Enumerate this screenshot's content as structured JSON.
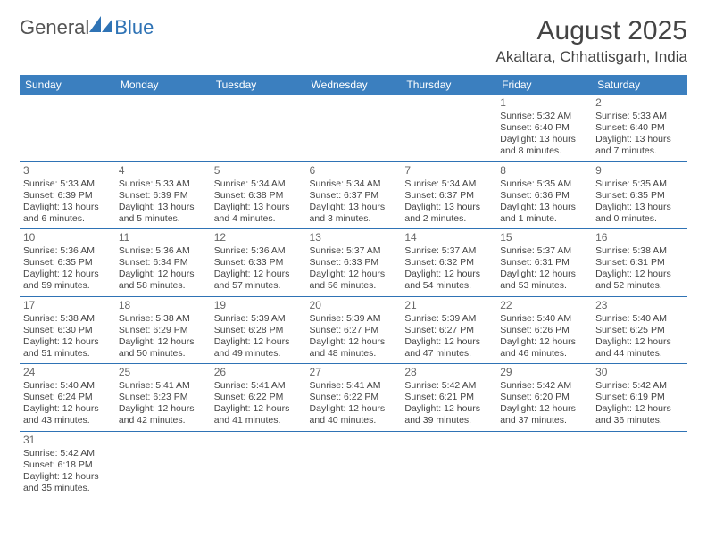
{
  "logo": {
    "general": "General",
    "blue": "Blue"
  },
  "title": "August 2025",
  "location": "Akaltara, Chhattisgarh, India",
  "colors": {
    "header_bg": "#3b7fbf",
    "header_fg": "#ffffff",
    "accent": "#2f73b5",
    "text": "#444444",
    "daynum": "#666666"
  },
  "weekdays": [
    "Sunday",
    "Monday",
    "Tuesday",
    "Wednesday",
    "Thursday",
    "Friday",
    "Saturday"
  ],
  "weeks": [
    [
      null,
      null,
      null,
      null,
      null,
      {
        "d": "1",
        "sr": "Sunrise: 5:32 AM",
        "ss": "Sunset: 6:40 PM",
        "dl": "Daylight: 13 hours and 8 minutes."
      },
      {
        "d": "2",
        "sr": "Sunrise: 5:33 AM",
        "ss": "Sunset: 6:40 PM",
        "dl": "Daylight: 13 hours and 7 minutes."
      }
    ],
    [
      {
        "d": "3",
        "sr": "Sunrise: 5:33 AM",
        "ss": "Sunset: 6:39 PM",
        "dl": "Daylight: 13 hours and 6 minutes."
      },
      {
        "d": "4",
        "sr": "Sunrise: 5:33 AM",
        "ss": "Sunset: 6:39 PM",
        "dl": "Daylight: 13 hours and 5 minutes."
      },
      {
        "d": "5",
        "sr": "Sunrise: 5:34 AM",
        "ss": "Sunset: 6:38 PM",
        "dl": "Daylight: 13 hours and 4 minutes."
      },
      {
        "d": "6",
        "sr": "Sunrise: 5:34 AM",
        "ss": "Sunset: 6:37 PM",
        "dl": "Daylight: 13 hours and 3 minutes."
      },
      {
        "d": "7",
        "sr": "Sunrise: 5:34 AM",
        "ss": "Sunset: 6:37 PM",
        "dl": "Daylight: 13 hours and 2 minutes."
      },
      {
        "d": "8",
        "sr": "Sunrise: 5:35 AM",
        "ss": "Sunset: 6:36 PM",
        "dl": "Daylight: 13 hours and 1 minute."
      },
      {
        "d": "9",
        "sr": "Sunrise: 5:35 AM",
        "ss": "Sunset: 6:35 PM",
        "dl": "Daylight: 13 hours and 0 minutes."
      }
    ],
    [
      {
        "d": "10",
        "sr": "Sunrise: 5:36 AM",
        "ss": "Sunset: 6:35 PM",
        "dl": "Daylight: 12 hours and 59 minutes."
      },
      {
        "d": "11",
        "sr": "Sunrise: 5:36 AM",
        "ss": "Sunset: 6:34 PM",
        "dl": "Daylight: 12 hours and 58 minutes."
      },
      {
        "d": "12",
        "sr": "Sunrise: 5:36 AM",
        "ss": "Sunset: 6:33 PM",
        "dl": "Daylight: 12 hours and 57 minutes."
      },
      {
        "d": "13",
        "sr": "Sunrise: 5:37 AM",
        "ss": "Sunset: 6:33 PM",
        "dl": "Daylight: 12 hours and 56 minutes."
      },
      {
        "d": "14",
        "sr": "Sunrise: 5:37 AM",
        "ss": "Sunset: 6:32 PM",
        "dl": "Daylight: 12 hours and 54 minutes."
      },
      {
        "d": "15",
        "sr": "Sunrise: 5:37 AM",
        "ss": "Sunset: 6:31 PM",
        "dl": "Daylight: 12 hours and 53 minutes."
      },
      {
        "d": "16",
        "sr": "Sunrise: 5:38 AM",
        "ss": "Sunset: 6:31 PM",
        "dl": "Daylight: 12 hours and 52 minutes."
      }
    ],
    [
      {
        "d": "17",
        "sr": "Sunrise: 5:38 AM",
        "ss": "Sunset: 6:30 PM",
        "dl": "Daylight: 12 hours and 51 minutes."
      },
      {
        "d": "18",
        "sr": "Sunrise: 5:38 AM",
        "ss": "Sunset: 6:29 PM",
        "dl": "Daylight: 12 hours and 50 minutes."
      },
      {
        "d": "19",
        "sr": "Sunrise: 5:39 AM",
        "ss": "Sunset: 6:28 PM",
        "dl": "Daylight: 12 hours and 49 minutes."
      },
      {
        "d": "20",
        "sr": "Sunrise: 5:39 AM",
        "ss": "Sunset: 6:27 PM",
        "dl": "Daylight: 12 hours and 48 minutes."
      },
      {
        "d": "21",
        "sr": "Sunrise: 5:39 AM",
        "ss": "Sunset: 6:27 PM",
        "dl": "Daylight: 12 hours and 47 minutes."
      },
      {
        "d": "22",
        "sr": "Sunrise: 5:40 AM",
        "ss": "Sunset: 6:26 PM",
        "dl": "Daylight: 12 hours and 46 minutes."
      },
      {
        "d": "23",
        "sr": "Sunrise: 5:40 AM",
        "ss": "Sunset: 6:25 PM",
        "dl": "Daylight: 12 hours and 44 minutes."
      }
    ],
    [
      {
        "d": "24",
        "sr": "Sunrise: 5:40 AM",
        "ss": "Sunset: 6:24 PM",
        "dl": "Daylight: 12 hours and 43 minutes."
      },
      {
        "d": "25",
        "sr": "Sunrise: 5:41 AM",
        "ss": "Sunset: 6:23 PM",
        "dl": "Daylight: 12 hours and 42 minutes."
      },
      {
        "d": "26",
        "sr": "Sunrise: 5:41 AM",
        "ss": "Sunset: 6:22 PM",
        "dl": "Daylight: 12 hours and 41 minutes."
      },
      {
        "d": "27",
        "sr": "Sunrise: 5:41 AM",
        "ss": "Sunset: 6:22 PM",
        "dl": "Daylight: 12 hours and 40 minutes."
      },
      {
        "d": "28",
        "sr": "Sunrise: 5:42 AM",
        "ss": "Sunset: 6:21 PM",
        "dl": "Daylight: 12 hours and 39 minutes."
      },
      {
        "d": "29",
        "sr": "Sunrise: 5:42 AM",
        "ss": "Sunset: 6:20 PM",
        "dl": "Daylight: 12 hours and 37 minutes."
      },
      {
        "d": "30",
        "sr": "Sunrise: 5:42 AM",
        "ss": "Sunset: 6:19 PM",
        "dl": "Daylight: 12 hours and 36 minutes."
      }
    ],
    [
      {
        "d": "31",
        "sr": "Sunrise: 5:42 AM",
        "ss": "Sunset: 6:18 PM",
        "dl": "Daylight: 12 hours and 35 minutes."
      },
      null,
      null,
      null,
      null,
      null,
      null
    ]
  ]
}
